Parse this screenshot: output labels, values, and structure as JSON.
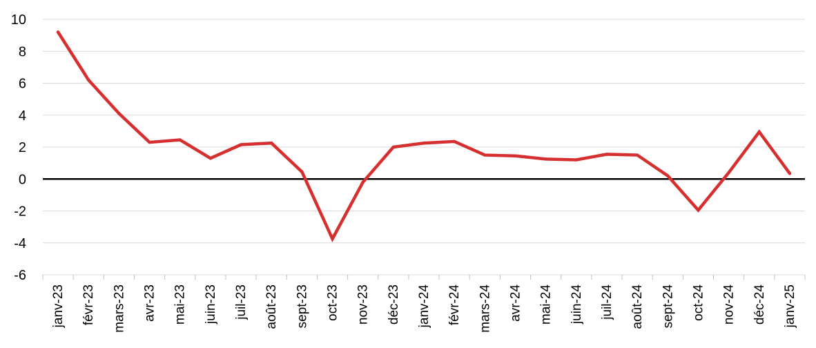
{
  "chart_data": {
    "type": "line",
    "title": "",
    "xlabel": "",
    "ylabel": "",
    "ylim": [
      -6,
      10
    ],
    "yticks": [
      -6,
      -4,
      -2,
      0,
      2,
      4,
      6,
      8,
      10
    ],
    "grid": true,
    "legend": "none",
    "categories": [
      "janv-23",
      "févr-23",
      "mars-23",
      "avr-23",
      "mai-23",
      "juin-23",
      "juil-23",
      "août-23",
      "sept-23",
      "oct-23",
      "nov-23",
      "déc-23",
      "janv-24",
      "févr-24",
      "mars-24",
      "avr-24",
      "mai-24",
      "juin-24",
      "juil-24",
      "août-24",
      "sept-24",
      "oct-24",
      "nov-24",
      "déc-24",
      "janv-25"
    ],
    "series": [
      {
        "values": [
          9.2,
          6.2,
          4.1,
          2.3,
          2.45,
          1.3,
          2.15,
          2.25,
          0.45,
          -3.75,
          -0.2,
          2.0,
          2.25,
          2.35,
          1.5,
          1.45,
          1.25,
          1.2,
          1.55,
          1.5,
          0.2,
          -1.95,
          0.4,
          2.95,
          0.35
        ]
      }
    ],
    "colors": {
      "line": "#d62f2f",
      "zero_line": "#000000",
      "grid": "#d9d9d9"
    }
  }
}
